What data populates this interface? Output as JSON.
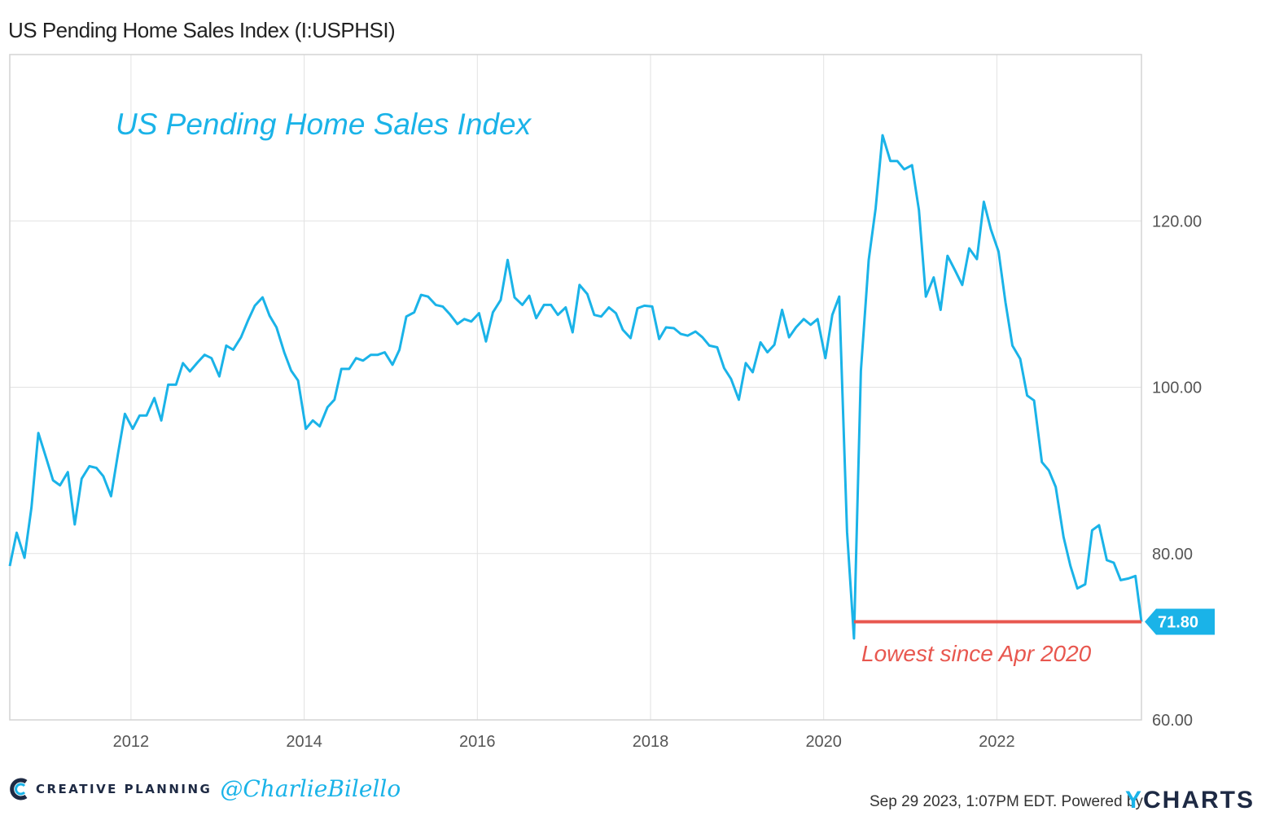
{
  "header": {
    "title": "US Pending Home Sales Index (I:USPHSI)"
  },
  "footer": {
    "brand": "CREATIVE PLANNING",
    "handle": "@CharlieBilello",
    "timestamp": "Sep 29 2023, 1:07PM EDT.",
    "powered_by": "Powered by",
    "ycharts_y": "Y",
    "ycharts_rest": "CHARTS"
  },
  "colors": {
    "line": "#1ab3e8",
    "threshold": "#e8574f",
    "badge": "#1ab3e8",
    "annotation": "#e8574f",
    "grid": "#e2e2e2"
  },
  "chart_data": {
    "type": "line",
    "title": "",
    "xlabel": "",
    "ylabel": "",
    "xlim": [
      2010.6,
      2023.67
    ],
    "ylim": [
      60,
      140
    ],
    "yticks": [
      60,
      80,
      100,
      120
    ],
    "ytick_labels": [
      "60.00",
      "80.00",
      "100.00",
      "120.00"
    ],
    "xticks": [
      2012,
      2014,
      2016,
      2018,
      2020,
      2022
    ],
    "xtick_labels": [
      "2012",
      "2014",
      "2016",
      "2018",
      "2020",
      "2022"
    ],
    "grid": true,
    "series": [
      {
        "x": [
          2010.6,
          2010.68,
          2010.77,
          2010.85,
          2010.93,
          2011.02,
          2011.1,
          2011.18,
          2011.27,
          2011.35,
          2011.43,
          2011.52,
          2011.6,
          2011.68,
          2011.77,
          2011.85,
          2011.93,
          2012.02,
          2012.1,
          2012.18,
          2012.27,
          2012.35,
          2012.43,
          2012.52,
          2012.6,
          2012.68,
          2012.77,
          2012.85,
          2012.93,
          2013.02,
          2013.1,
          2013.18,
          2013.27,
          2013.35,
          2013.43,
          2013.52,
          2013.6,
          2013.68,
          2013.77,
          2013.85,
          2013.93,
          2014.02,
          2014.1,
          2014.18,
          2014.27,
          2014.35,
          2014.43,
          2014.52,
          2014.6,
          2014.68,
          2014.77,
          2014.85,
          2014.93,
          2015.02,
          2015.1,
          2015.18,
          2015.27,
          2015.35,
          2015.43,
          2015.52,
          2015.6,
          2015.68,
          2015.77,
          2015.85,
          2015.93,
          2016.02,
          2016.1,
          2016.18,
          2016.27,
          2016.35,
          2016.43,
          2016.52,
          2016.6,
          2016.68,
          2016.77,
          2016.85,
          2016.93,
          2017.02,
          2017.1,
          2017.18,
          2017.27,
          2017.35,
          2017.43,
          2017.52,
          2017.6,
          2017.68,
          2017.77,
          2017.85,
          2017.93,
          2018.02,
          2018.1,
          2018.18,
          2018.27,
          2018.35,
          2018.43,
          2018.52,
          2018.6,
          2018.68,
          2018.77,
          2018.85,
          2018.93,
          2019.02,
          2019.1,
          2019.18,
          2019.27,
          2019.35,
          2019.43,
          2019.52,
          2019.6,
          2019.68,
          2019.77,
          2019.85,
          2019.93,
          2020.02,
          2020.1,
          2020.18,
          2020.27,
          2020.35,
          2020.43,
          2020.52,
          2020.6,
          2020.68,
          2020.77,
          2020.85,
          2020.93,
          2021.02,
          2021.1,
          2021.18,
          2021.27,
          2021.35,
          2021.43,
          2021.52,
          2021.6,
          2021.68,
          2021.77,
          2021.85,
          2021.93,
          2022.02,
          2022.1,
          2022.18,
          2022.27,
          2022.35,
          2022.43,
          2022.52,
          2022.6,
          2022.68,
          2022.77,
          2022.85,
          2022.93,
          2023.02,
          2023.1,
          2023.18,
          2023.27,
          2023.35,
          2023.43,
          2023.52,
          2023.6,
          2023.67
        ],
        "values": [
          78.5,
          82.5,
          79.5,
          85.5,
          94.5,
          91.5,
          88.8,
          88.2,
          89.8,
          83.5,
          89.0,
          90.5,
          90.3,
          89.3,
          86.9,
          92.0,
          96.8,
          95.0,
          96.6,
          96.6,
          98.7,
          96.0,
          100.3,
          100.3,
          102.9,
          101.9,
          103.0,
          103.9,
          103.5,
          101.3,
          105.0,
          104.5,
          106.0,
          108.0,
          109.8,
          110.8,
          108.6,
          107.2,
          104.2,
          102.0,
          100.8,
          95.0,
          96.0,
          95.3,
          97.6,
          98.5,
          102.2,
          102.2,
          103.5,
          103.2,
          103.9,
          103.9,
          104.2,
          102.7,
          104.5,
          108.5,
          109.0,
          111.1,
          110.9,
          109.9,
          109.7,
          108.8,
          107.6,
          108.2,
          107.9,
          108.9,
          105.5,
          109.0,
          110.5,
          115.3,
          110.8,
          109.9,
          111.0,
          108.3,
          109.9,
          109.9,
          108.7,
          109.6,
          106.6,
          112.3,
          111.2,
          108.7,
          108.5,
          109.6,
          108.9,
          106.9,
          105.9,
          109.5,
          109.8,
          109.7,
          105.8,
          107.2,
          107.1,
          106.4,
          106.2,
          106.7,
          106.0,
          105.0,
          104.8,
          102.3,
          101.0,
          98.5,
          102.9,
          101.8,
          105.4,
          104.2,
          105.1,
          109.3,
          106.0,
          107.2,
          108.2,
          107.5,
          108.2,
          103.5,
          108.7,
          110.9,
          82.6,
          69.8,
          102.0,
          115.3,
          121.5,
          130.3,
          127.2,
          127.2,
          126.2,
          126.7,
          121.3,
          110.9,
          113.2,
          109.3,
          115.8,
          114.0,
          112.3,
          116.7,
          115.4,
          122.3,
          119.0,
          116.3,
          110.2,
          105.0,
          103.4,
          99.0,
          98.4,
          91.0,
          90.0,
          88.0,
          82.0,
          78.5,
          75.8,
          76.3,
          82.8,
          83.4,
          79.2,
          78.9,
          76.8,
          77.0,
          77.3,
          71.8
        ]
      }
    ],
    "threshold": {
      "value": 71.8,
      "from_x": 2020.35,
      "to_x": 2023.67
    },
    "last_value_label": "71.80",
    "annotations": [
      {
        "text": "US Pending Home Sales Index"
      },
      {
        "text": "Lowest since Apr 2020"
      }
    ]
  }
}
